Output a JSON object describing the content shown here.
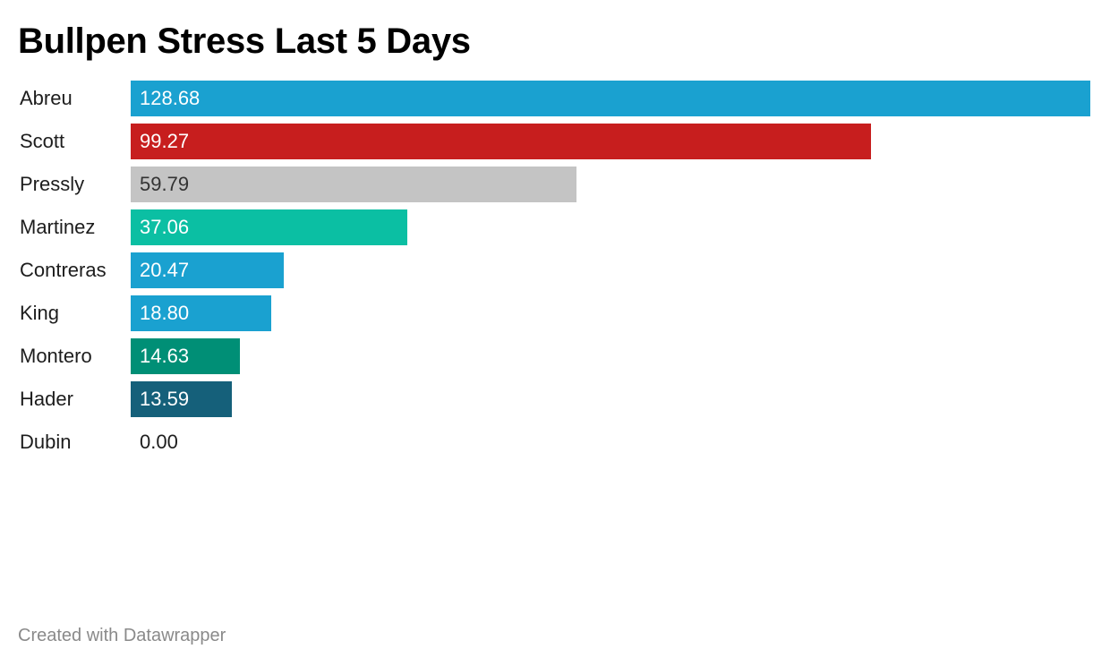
{
  "chart_data": {
    "type": "bar",
    "orientation": "horizontal",
    "title": "Bullpen Stress Last 5 Days",
    "categories": [
      "Abreu",
      "Scott",
      "Pressly",
      "Martinez",
      "Contreras",
      "King",
      "Montero",
      "Hader",
      "Dubin"
    ],
    "values": [
      128.68,
      99.27,
      59.79,
      37.06,
      20.47,
      18.8,
      14.63,
      13.59,
      0.0
    ],
    "value_labels": [
      "128.68",
      "99.27",
      "59.79",
      "37.06",
      "20.47",
      "18.80",
      "14.63",
      "13.59",
      "0.00"
    ],
    "bar_colors": [
      "#1aa1d0",
      "#c71e1e",
      "#c4c4c4",
      "#0bbfa3",
      "#1aa1d0",
      "#1aa1d0",
      "#008f76",
      "#15607a",
      "#1aa1d0"
    ],
    "label_colors": [
      "#ffffff",
      "#ffffff",
      "#333333",
      "#ffffff",
      "#ffffff",
      "#ffffff",
      "#ffffff",
      "#ffffff",
      "#1d1d1d"
    ],
    "xlim": [
      0,
      128.68
    ],
    "grid": false,
    "legend": "none"
  },
  "footer": {
    "credit": "Created with Datawrapper"
  }
}
